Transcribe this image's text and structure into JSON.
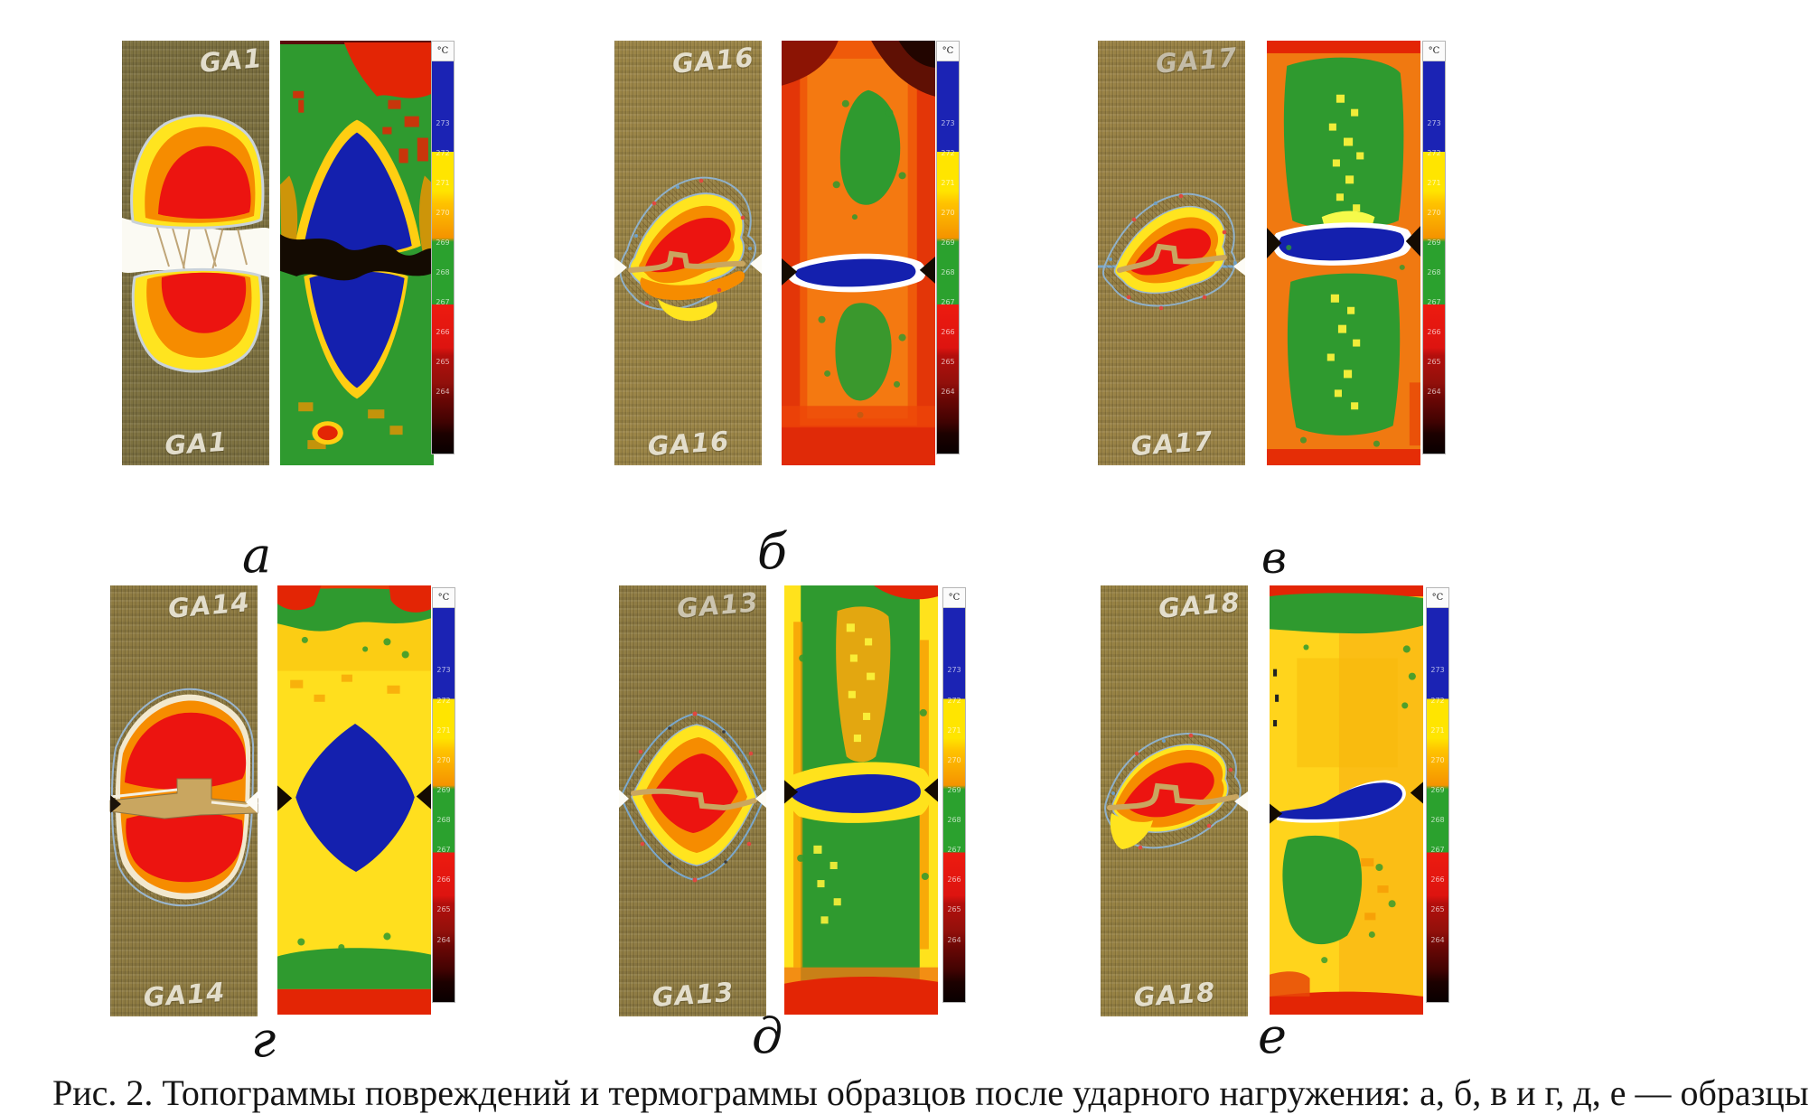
{
  "figure": {
    "colorbar": {
      "unit": "°C",
      "ticks": [
        "273",
        "272",
        "271",
        "270",
        "269",
        "268",
        "267",
        "266",
        "265",
        "264"
      ]
    },
    "panels": [
      {
        "letter": "а",
        "specimen_id": "GA1",
        "label_top": "GA1",
        "label_bottom": "GA1"
      },
      {
        "letter": "б",
        "specimen_id": "GA16",
        "label_top": "GA16",
        "label_bottom": "GA16"
      },
      {
        "letter": "в",
        "specimen_id": "GA17",
        "label_top": "GA17",
        "label_bottom": "GA17"
      },
      {
        "letter": "г",
        "specimen_id": "GA14",
        "label_top": "GA14",
        "label_bottom": "GA14"
      },
      {
        "letter": "д",
        "specimen_id": "GA13",
        "label_top": "GA13",
        "label_bottom": "GA13"
      },
      {
        "letter": "е",
        "specimen_id": "GA18",
        "label_top": "GA18",
        "label_bottom": "GA18"
      }
    ],
    "caption_partial": "Рис. 2. Топограммы повреждений и термограммы образцов после ударного нагружения: а, б, в и г, д, е — образцы",
    "colors": {
      "thermal_blue": "#1420ae",
      "thermal_green": "#2f9a2f",
      "thermal_yellow": "#ffdf1e",
      "thermal_orange": "#f59300",
      "thermal_red": "#e32505",
      "specimen_khaki": "#8d7a41",
      "damage_red": "#ec1410",
      "damage_orange": "#f68c00",
      "damage_yellow": "#ffe41f",
      "crack_tan": "#c9a660"
    }
  }
}
